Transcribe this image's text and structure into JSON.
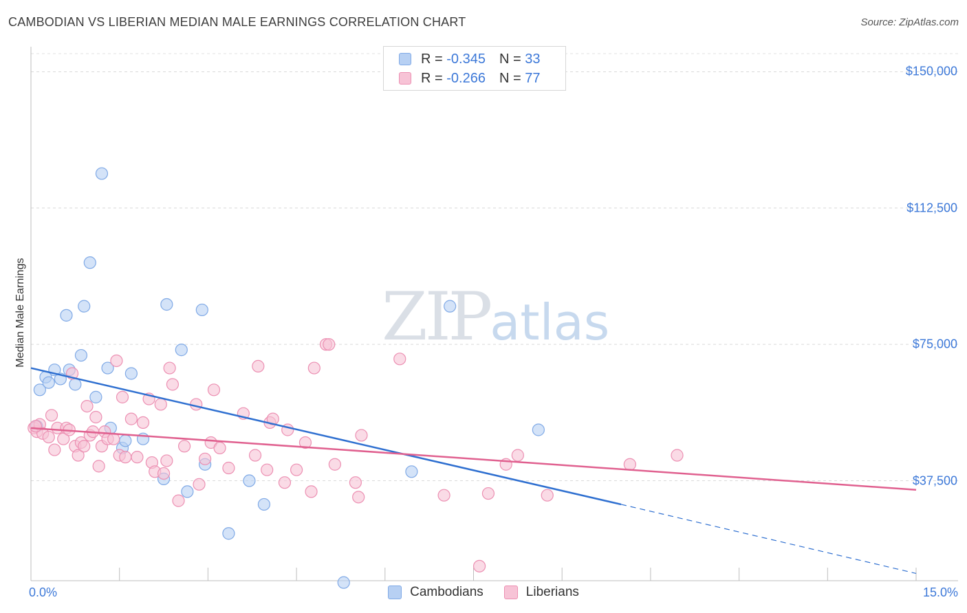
{
  "chart_data": {
    "type": "scatter",
    "title": "CAMBODIAN VS LIBERIAN MEDIAN MALE EARNINGS CORRELATION CHART",
    "source": "Source: ZipAtlas.com",
    "xlabel": "",
    "ylabel": "Median Male Earnings",
    "xlim": [
      0,
      15
    ],
    "ylim": [
      10000,
      155000
    ],
    "y_ticks": [
      {
        "value": 150000,
        "label": "$150,000"
      },
      {
        "value": 112500,
        "label": "$112,500"
      },
      {
        "value": 75000,
        "label": "$75,000"
      },
      {
        "value": 37500,
        "label": "$37,500"
      }
    ],
    "x_tick_labels": {
      "min": "0.0%",
      "max": "15.0%"
    },
    "watermark": {
      "zip": "ZIP",
      "atlas": "atlas"
    },
    "legend": [
      {
        "r_label": "R = ",
        "r_value": "-0.345",
        "n_label": "N = ",
        "n_value": "33"
      },
      {
        "r_label": "R = ",
        "r_value": "-0.266",
        "n_label": "N = ",
        "n_value": "77"
      }
    ],
    "series": [
      {
        "name": "Cambodians",
        "color": "#7fa9e6",
        "fill": "#b7d0f3",
        "line_color": "#2e6fd0",
        "trend": {
          "x0": 0,
          "y0": 68500,
          "x1": 10,
          "y1": 31000,
          "dash_to_x": 15,
          "dash_to_y": 12000
        },
        "points": [
          [
            0.1,
            52500
          ],
          [
            0.15,
            62500
          ],
          [
            0.25,
            66000
          ],
          [
            0.3,
            64500
          ],
          [
            0.4,
            68000
          ],
          [
            0.5,
            65500
          ],
          [
            0.6,
            83000
          ],
          [
            0.65,
            68000
          ],
          [
            0.75,
            64000
          ],
          [
            0.85,
            72000
          ],
          [
            0.9,
            85500
          ],
          [
            1.0,
            97500
          ],
          [
            1.1,
            60500
          ],
          [
            1.2,
            122000
          ],
          [
            1.3,
            68500
          ],
          [
            1.35,
            52000
          ],
          [
            1.55,
            46500
          ],
          [
            1.6,
            48500
          ],
          [
            1.7,
            67000
          ],
          [
            1.9,
            49000
          ],
          [
            2.25,
            38000
          ],
          [
            2.3,
            86000
          ],
          [
            2.55,
            73500
          ],
          [
            2.65,
            34500
          ],
          [
            2.9,
            84500
          ],
          [
            2.95,
            42000
          ],
          [
            3.35,
            23000
          ],
          [
            3.7,
            37500
          ],
          [
            3.95,
            31000
          ],
          [
            5.3,
            9500
          ],
          [
            6.45,
            40000
          ],
          [
            7.1,
            85500
          ],
          [
            8.6,
            51500
          ]
        ]
      },
      {
        "name": "Liberians",
        "color": "#ec8fb2",
        "fill": "#f7c3d6",
        "line_color": "#e0608f",
        "trend": {
          "x0": 0,
          "y0": 52000,
          "x1": 15,
          "y1": 35000
        },
        "points": [
          [
            0.05,
            52000
          ],
          [
            0.1,
            51000
          ],
          [
            0.15,
            53000
          ],
          [
            0.2,
            50500
          ],
          [
            0.3,
            49500
          ],
          [
            0.35,
            55500
          ],
          [
            0.4,
            46000
          ],
          [
            0.45,
            52000
          ],
          [
            0.55,
            49000
          ],
          [
            0.6,
            52000
          ],
          [
            0.65,
            51500
          ],
          [
            0.7,
            67000
          ],
          [
            0.75,
            47000
          ],
          [
            0.8,
            44500
          ],
          [
            0.85,
            48000
          ],
          [
            0.9,
            47000
          ],
          [
            0.95,
            58000
          ],
          [
            1.0,
            50000
          ],
          [
            1.05,
            51000
          ],
          [
            1.1,
            55000
          ],
          [
            1.15,
            41500
          ],
          [
            1.2,
            47000
          ],
          [
            1.25,
            51000
          ],
          [
            1.3,
            49000
          ],
          [
            1.4,
            49000
          ],
          [
            1.45,
            70500
          ],
          [
            1.5,
            44500
          ],
          [
            1.55,
            60500
          ],
          [
            1.6,
            44000
          ],
          [
            1.7,
            54500
          ],
          [
            1.8,
            44000
          ],
          [
            1.9,
            53500
          ],
          [
            2.0,
            60000
          ],
          [
            2.05,
            42500
          ],
          [
            2.1,
            40000
          ],
          [
            2.2,
            58500
          ],
          [
            2.25,
            39500
          ],
          [
            2.3,
            43000
          ],
          [
            2.35,
            68500
          ],
          [
            2.4,
            64000
          ],
          [
            2.5,
            32000
          ],
          [
            2.6,
            47000
          ],
          [
            2.8,
            58500
          ],
          [
            2.85,
            36500
          ],
          [
            2.95,
            43500
          ],
          [
            3.05,
            48000
          ],
          [
            3.1,
            62500
          ],
          [
            3.2,
            46500
          ],
          [
            3.35,
            41000
          ],
          [
            3.6,
            56000
          ],
          [
            3.8,
            44500
          ],
          [
            3.85,
            69000
          ],
          [
            4.0,
            40500
          ],
          [
            4.05,
            53500
          ],
          [
            4.1,
            54500
          ],
          [
            4.3,
            37000
          ],
          [
            4.35,
            51500
          ],
          [
            4.5,
            40500
          ],
          [
            4.65,
            48000
          ],
          [
            4.75,
            34500
          ],
          [
            4.8,
            68500
          ],
          [
            5.0,
            75000
          ],
          [
            5.05,
            75000
          ],
          [
            5.15,
            42000
          ],
          [
            5.5,
            37000
          ],
          [
            5.55,
            33000
          ],
          [
            5.6,
            50000
          ],
          [
            6.25,
            71000
          ],
          [
            7.0,
            33500
          ],
          [
            7.6,
            14000
          ],
          [
            7.75,
            34000
          ],
          [
            8.05,
            42000
          ],
          [
            8.25,
            44500
          ],
          [
            8.75,
            33500
          ],
          [
            10.15,
            42000
          ],
          [
            10.95,
            44500
          ],
          [
            0.08,
            52500
          ]
        ]
      }
    ]
  }
}
